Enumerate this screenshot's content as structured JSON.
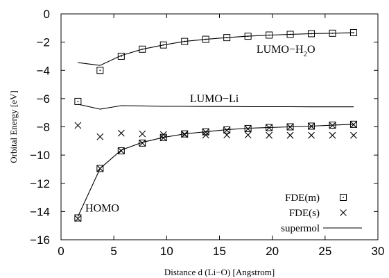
{
  "chart_data": {
    "type": "line",
    "xlabel": "Distance d (Li−O) [Angstrom]",
    "ylabel": "Orbital Energy [eV]",
    "xlim": [
      0,
      30
    ],
    "ylim": [
      -16,
      0
    ],
    "xticks": [
      "0",
      "5",
      "10",
      "15",
      "20",
      "25",
      "30"
    ],
    "yticks": [
      "0",
      "−2",
      "−4",
      "−6",
      "−8",
      "−10",
      "−12",
      "−14",
      "−16"
    ],
    "annotations": {
      "lumo_h2o": "LUMO−H",
      "lumo_h2o_sub": "2",
      "lumo_h2o_tail": "O",
      "lumo_li": "LUMO−Li",
      "homo": "HOMO"
    },
    "legend": {
      "position": "bottom-right",
      "entries": [
        "FDE(m)",
        "FDE(s)",
        "supermol"
      ]
    },
    "series": [
      {
        "name": "supermol",
        "style": "line",
        "curves": [
          {
            "x": [
              1.6,
              3.7,
              5.7,
              7.7,
              9.7,
              11.7,
              13.7,
              15.7,
              17.7,
              19.7,
              21.7,
              23.7,
              25.7,
              27.7
            ],
            "y": [
              -3.45,
              -3.65,
              -2.95,
              -2.5,
              -2.2,
              -1.95,
              -1.8,
              -1.68,
              -1.58,
              -1.5,
              -1.45,
              -1.4,
              -1.37,
              -1.33
            ]
          },
          {
            "x": [
              1.6,
              3.7,
              5.7,
              7.7,
              9.7,
              11.7,
              13.7,
              15.7,
              17.7,
              19.7,
              21.7,
              23.7,
              25.7,
              27.7
            ],
            "y": [
              -6.4,
              -6.75,
              -6.5,
              -6.52,
              -6.55,
              -6.55,
              -6.56,
              -6.56,
              -6.57,
              -6.57,
              -6.57,
              -6.58,
              -6.58,
              -6.58
            ]
          },
          {
            "x": [
              1.6,
              3.7,
              5.7,
              7.7,
              9.7,
              11.7,
              13.7,
              15.7,
              17.7,
              19.7,
              21.7,
              23.7,
              25.7,
              27.7
            ],
            "y": [
              -14.35,
              -10.95,
              -9.65,
              -9.1,
              -8.75,
              -8.5,
              -8.35,
              -8.2,
              -8.1,
              -8.05,
              -8.0,
              -7.95,
              -7.88,
              -7.82
            ]
          }
        ]
      },
      {
        "name": "FDE(m)",
        "style": "square",
        "points": [
          {
            "x": 3.7,
            "y": -4.0
          },
          {
            "x": 5.7,
            "y": -3.0
          },
          {
            "x": 7.7,
            "y": -2.5
          },
          {
            "x": 9.7,
            "y": -2.2
          },
          {
            "x": 11.7,
            "y": -1.95
          },
          {
            "x": 13.7,
            "y": -1.8
          },
          {
            "x": 15.7,
            "y": -1.68
          },
          {
            "x": 17.7,
            "y": -1.58
          },
          {
            "x": 19.7,
            "y": -1.5
          },
          {
            "x": 21.7,
            "y": -1.45
          },
          {
            "x": 23.7,
            "y": -1.4
          },
          {
            "x": 25.7,
            "y": -1.37
          },
          {
            "x": 27.7,
            "y": -1.33
          },
          {
            "x": 1.6,
            "y": -6.2
          },
          {
            "x": 1.6,
            "y": -14.45
          },
          {
            "x": 3.7,
            "y": -10.95
          },
          {
            "x": 5.7,
            "y": -9.7
          },
          {
            "x": 7.7,
            "y": -9.15
          },
          {
            "x": 9.7,
            "y": -8.75
          },
          {
            "x": 11.7,
            "y": -8.5
          },
          {
            "x": 13.7,
            "y": -8.35
          },
          {
            "x": 15.7,
            "y": -8.22
          },
          {
            "x": 17.7,
            "y": -8.12
          },
          {
            "x": 19.7,
            "y": -8.05
          },
          {
            "x": 21.7,
            "y": -8.0
          },
          {
            "x": 23.7,
            "y": -7.95
          },
          {
            "x": 25.7,
            "y": -7.88
          },
          {
            "x": 27.7,
            "y": -7.82
          }
        ]
      },
      {
        "name": "FDE(s)",
        "style": "cross",
        "points": [
          {
            "x": 1.6,
            "y": -7.9
          },
          {
            "x": 3.7,
            "y": -8.7
          },
          {
            "x": 5.7,
            "y": -8.45
          },
          {
            "x": 7.7,
            "y": -8.5
          },
          {
            "x": 9.7,
            "y": -8.55
          },
          {
            "x": 11.7,
            "y": -8.55
          },
          {
            "x": 13.7,
            "y": -8.58
          },
          {
            "x": 15.7,
            "y": -8.58
          },
          {
            "x": 17.7,
            "y": -8.58
          },
          {
            "x": 19.7,
            "y": -8.6
          },
          {
            "x": 21.7,
            "y": -8.6
          },
          {
            "x": 23.7,
            "y": -8.6
          },
          {
            "x": 25.7,
            "y": -8.6
          },
          {
            "x": 27.7,
            "y": -8.6
          },
          {
            "x": 1.6,
            "y": -14.5
          },
          {
            "x": 3.7,
            "y": -10.95
          },
          {
            "x": 5.7,
            "y": -9.7
          },
          {
            "x": 7.7,
            "y": -9.15
          },
          {
            "x": 9.7,
            "y": -8.78
          },
          {
            "x": 11.7,
            "y": -8.52
          },
          {
            "x": 13.7,
            "y": -8.37
          },
          {
            "x": 15.7,
            "y": -8.24
          },
          {
            "x": 17.7,
            "y": -8.14
          },
          {
            "x": 19.7,
            "y": -8.06
          },
          {
            "x": 21.7,
            "y": -8.01
          },
          {
            "x": 23.7,
            "y": -7.96
          },
          {
            "x": 25.7,
            "y": -7.9
          },
          {
            "x": 27.7,
            "y": -7.84
          }
        ]
      }
    ],
    "colors": {
      "ink": "#000000",
      "background": "#ffffff"
    }
  }
}
